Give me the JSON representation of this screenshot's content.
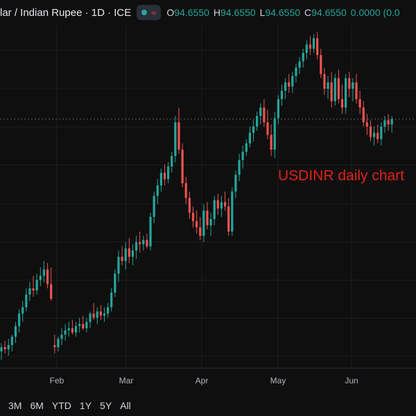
{
  "header": {
    "symbol": "lar / Indian Rupee · 1D · ICE",
    "open_label": "O",
    "open_value": "94.6550",
    "high_label": "H",
    "high_value": "94.6550",
    "low_label": "L",
    "low_value": "94.6550",
    "close_label": "C",
    "close_value": "94.6550",
    "change": "0.0000 (0.0"
  },
  "annotation": "USDINR daily chart",
  "range_buttons": [
    "3M",
    "6M",
    "YTD",
    "1Y",
    "5Y",
    "All"
  ],
  "colors": {
    "up": "#26a69a",
    "down": "#ef5350",
    "background": "#0f0f0f",
    "annotation": "#e0221b"
  },
  "chart_data": {
    "type": "candlestick",
    "x_ticks": [
      "Feb",
      "Mar",
      "Apr",
      "May",
      "Jun"
    ],
    "grid": true,
    "last_price_line": 94.655,
    "y_visible_range": [
      83.0,
      99.0
    ],
    "series": [
      {
        "date": "Jan-13",
        "o": 83.6,
        "h": 84.0,
        "l": 83.2,
        "c": 83.8
      },
      {
        "date": "Jan-14",
        "o": 83.8,
        "h": 84.1,
        "l": 83.5,
        "c": 83.7
      },
      {
        "date": "Jan-15",
        "o": 83.7,
        "h": 84.2,
        "l": 83.4,
        "c": 83.9
      },
      {
        "date": "Jan-16",
        "o": 83.9,
        "h": 84.4,
        "l": 83.6,
        "c": 84.3
      },
      {
        "date": "Jan-17",
        "o": 84.3,
        "h": 85.0,
        "l": 84.0,
        "c": 84.8
      },
      {
        "date": "Jan-20",
        "o": 84.8,
        "h": 85.6,
        "l": 84.5,
        "c": 85.4
      },
      {
        "date": "Jan-21",
        "o": 85.4,
        "h": 86.0,
        "l": 85.0,
        "c": 85.7
      },
      {
        "date": "Jan-22",
        "o": 85.7,
        "h": 86.6,
        "l": 85.5,
        "c": 86.3
      },
      {
        "date": "Jan-23",
        "o": 86.3,
        "h": 86.9,
        "l": 86.0,
        "c": 86.6
      },
      {
        "date": "Jan-24",
        "o": 86.6,
        "h": 87.2,
        "l": 86.2,
        "c": 86.5
      },
      {
        "date": "Jan-27",
        "o": 86.5,
        "h": 87.3,
        "l": 86.3,
        "c": 87.0
      },
      {
        "date": "Jan-28",
        "o": 87.0,
        "h": 87.6,
        "l": 86.7,
        "c": 87.2
      },
      {
        "date": "Jan-29",
        "o": 87.2,
        "h": 87.9,
        "l": 86.9,
        "c": 87.5
      },
      {
        "date": "Jan-30",
        "o": 87.5,
        "h": 87.8,
        "l": 86.6,
        "c": 86.8
      },
      {
        "date": "Jan-31",
        "o": 86.8,
        "h": 87.6,
        "l": 86.0,
        "c": 86.1
      },
      {
        "date": "Feb-03",
        "o": 83.9,
        "h": 84.4,
        "l": 83.5,
        "c": 83.8
      },
      {
        "date": "Feb-04",
        "o": 83.8,
        "h": 84.3,
        "l": 83.6,
        "c": 84.2
      },
      {
        "date": "Feb-05",
        "o": 84.2,
        "h": 84.7,
        "l": 83.9,
        "c": 84.4
      },
      {
        "date": "Feb-06",
        "o": 84.4,
        "h": 84.9,
        "l": 84.1,
        "c": 84.6
      },
      {
        "date": "Feb-07",
        "o": 84.6,
        "h": 85.0,
        "l": 84.3,
        "c": 84.7
      },
      {
        "date": "Feb-10",
        "o": 84.7,
        "h": 85.1,
        "l": 84.4,
        "c": 84.5
      },
      {
        "date": "Feb-11",
        "o": 84.5,
        "h": 85.0,
        "l": 84.3,
        "c": 84.8
      },
      {
        "date": "Feb-12",
        "o": 84.8,
        "h": 85.2,
        "l": 84.5,
        "c": 84.9
      },
      {
        "date": "Feb-13",
        "o": 84.9,
        "h": 85.3,
        "l": 84.6,
        "c": 84.7
      },
      {
        "date": "Feb-14",
        "o": 84.7,
        "h": 85.2,
        "l": 84.5,
        "c": 85.0
      },
      {
        "date": "Feb-17",
        "o": 85.0,
        "h": 85.5,
        "l": 84.7,
        "c": 85.4
      },
      {
        "date": "Feb-18",
        "o": 85.4,
        "h": 85.9,
        "l": 85.1,
        "c": 85.2
      },
      {
        "date": "Feb-19",
        "o": 85.2,
        "h": 85.7,
        "l": 84.9,
        "c": 85.5
      },
      {
        "date": "Feb-20",
        "o": 85.5,
        "h": 85.8,
        "l": 85.1,
        "c": 85.3
      },
      {
        "date": "Feb-21",
        "o": 85.3,
        "h": 85.7,
        "l": 85.0,
        "c": 85.4
      },
      {
        "date": "Feb-24",
        "o": 85.4,
        "h": 85.9,
        "l": 85.2,
        "c": 85.7
      },
      {
        "date": "Feb-25",
        "o": 85.7,
        "h": 86.6,
        "l": 85.5,
        "c": 86.4
      },
      {
        "date": "Feb-26",
        "o": 86.4,
        "h": 87.5,
        "l": 86.2,
        "c": 87.3
      },
      {
        "date": "Feb-27",
        "o": 87.3,
        "h": 88.4,
        "l": 86.9,
        "c": 88.1
      },
      {
        "date": "Feb-28",
        "o": 88.1,
        "h": 88.6,
        "l": 87.7,
        "c": 87.9
      },
      {
        "date": "Mar-03",
        "o": 87.9,
        "h": 88.8,
        "l": 87.5,
        "c": 88.5
      },
      {
        "date": "Mar-04",
        "o": 88.5,
        "h": 89.0,
        "l": 87.8,
        "c": 88.1
      },
      {
        "date": "Mar-05",
        "o": 88.1,
        "h": 88.7,
        "l": 87.7,
        "c": 88.4
      },
      {
        "date": "Mar-06",
        "o": 88.4,
        "h": 89.1,
        "l": 88.0,
        "c": 88.8
      },
      {
        "date": "Mar-07",
        "o": 88.8,
        "h": 89.3,
        "l": 88.3,
        "c": 88.7
      },
      {
        "date": "Mar-10",
        "o": 88.7,
        "h": 89.1,
        "l": 88.4,
        "c": 88.9
      },
      {
        "date": "Mar-11",
        "o": 88.9,
        "h": 89.2,
        "l": 88.5,
        "c": 88.6
      },
      {
        "date": "Mar-12",
        "o": 88.6,
        "h": 90.2,
        "l": 88.4,
        "c": 90.0
      },
      {
        "date": "Mar-13",
        "o": 90.0,
        "h": 91.2,
        "l": 89.7,
        "c": 91.0
      },
      {
        "date": "Mar-16",
        "o": 91.0,
        "h": 91.8,
        "l": 90.6,
        "c": 91.5
      },
      {
        "date": "Mar-17",
        "o": 91.5,
        "h": 92.3,
        "l": 91.2,
        "c": 92.1
      },
      {
        "date": "Mar-18",
        "o": 92.1,
        "h": 92.5,
        "l": 91.5,
        "c": 91.8
      },
      {
        "date": "Mar-19",
        "o": 91.8,
        "h": 92.6,
        "l": 91.6,
        "c": 92.4
      },
      {
        "date": "Mar-20",
        "o": 92.4,
        "h": 93.1,
        "l": 92.1,
        "c": 92.9
      },
      {
        "date": "Mar-23",
        "o": 92.9,
        "h": 94.8,
        "l": 92.6,
        "c": 94.5
      },
      {
        "date": "Mar-24",
        "o": 94.5,
        "h": 95.2,
        "l": 93.0,
        "c": 93.2
      },
      {
        "date": "Mar-25",
        "o": 93.2,
        "h": 93.5,
        "l": 91.4,
        "c": 91.6
      },
      {
        "date": "Mar-26",
        "o": 91.6,
        "h": 91.9,
        "l": 90.6,
        "c": 90.9
      },
      {
        "date": "Mar-27",
        "o": 90.9,
        "h": 91.2,
        "l": 89.9,
        "c": 90.2
      },
      {
        "date": "Mar-30",
        "o": 90.2,
        "h": 90.5,
        "l": 89.5,
        "c": 89.8
      },
      {
        "date": "Mar-31",
        "o": 89.8,
        "h": 90.3,
        "l": 89.2,
        "c": 89.5
      },
      {
        "date": "Apr-01",
        "o": 89.5,
        "h": 90.0,
        "l": 88.9,
        "c": 89.1
      },
      {
        "date": "Apr-02",
        "o": 89.1,
        "h": 90.6,
        "l": 88.8,
        "c": 90.3
      },
      {
        "date": "Apr-03",
        "o": 90.3,
        "h": 90.7,
        "l": 89.4,
        "c": 89.6
      },
      {
        "date": "Apr-06",
        "o": 89.6,
        "h": 90.2,
        "l": 89.1,
        "c": 89.9
      },
      {
        "date": "Apr-07",
        "o": 89.9,
        "h": 91.0,
        "l": 89.6,
        "c": 90.8
      },
      {
        "date": "Apr-08",
        "o": 90.8,
        "h": 91.1,
        "l": 90.1,
        "c": 90.4
      },
      {
        "date": "Apr-09",
        "o": 90.4,
        "h": 91.0,
        "l": 90.0,
        "c": 90.7
      },
      {
        "date": "Apr-10",
        "o": 90.7,
        "h": 91.2,
        "l": 90.3,
        "c": 90.5
      },
      {
        "date": "Apr-13",
        "o": 90.5,
        "h": 90.9,
        "l": 89.1,
        "c": 89.3
      },
      {
        "date": "Apr-14",
        "o": 89.3,
        "h": 91.4,
        "l": 89.1,
        "c": 91.2
      },
      {
        "date": "Apr-15",
        "o": 91.2,
        "h": 92.2,
        "l": 90.9,
        "c": 92.0
      },
      {
        "date": "Apr-16",
        "o": 92.0,
        "h": 93.0,
        "l": 91.7,
        "c": 92.7
      },
      {
        "date": "Apr-17",
        "o": 92.7,
        "h": 93.4,
        "l": 92.3,
        "c": 93.1
      },
      {
        "date": "Apr-20",
        "o": 93.1,
        "h": 93.7,
        "l": 92.9,
        "c": 93.5
      },
      {
        "date": "Apr-21",
        "o": 93.5,
        "h": 94.3,
        "l": 93.3,
        "c": 94.0
      },
      {
        "date": "Apr-22",
        "o": 94.0,
        "h": 94.6,
        "l": 93.6,
        "c": 94.3
      },
      {
        "date": "Apr-23",
        "o": 94.3,
        "h": 95.0,
        "l": 94.1,
        "c": 94.8
      },
      {
        "date": "Apr-24",
        "o": 94.8,
        "h": 95.4,
        "l": 94.4,
        "c": 95.2
      },
      {
        "date": "Apr-27",
        "o": 95.2,
        "h": 95.6,
        "l": 94.3,
        "c": 94.5
      },
      {
        "date": "Apr-28",
        "o": 94.5,
        "h": 95.1,
        "l": 93.7,
        "c": 93.9
      },
      {
        "date": "Apr-29",
        "o": 93.9,
        "h": 94.4,
        "l": 92.9,
        "c": 93.2
      },
      {
        "date": "Apr-30",
        "o": 93.2,
        "h": 95.0,
        "l": 92.8,
        "c": 94.7
      },
      {
        "date": "May-01",
        "o": 94.7,
        "h": 95.8,
        "l": 94.4,
        "c": 95.6
      },
      {
        "date": "May-04",
        "o": 95.6,
        "h": 96.3,
        "l": 95.3,
        "c": 96.0
      },
      {
        "date": "May-05",
        "o": 96.0,
        "h": 96.6,
        "l": 95.6,
        "c": 96.4
      },
      {
        "date": "May-06",
        "o": 96.4,
        "h": 96.8,
        "l": 95.9,
        "c": 96.2
      },
      {
        "date": "May-07",
        "o": 96.2,
        "h": 96.9,
        "l": 95.9,
        "c": 96.7
      },
      {
        "date": "May-08",
        "o": 96.7,
        "h": 97.3,
        "l": 96.4,
        "c": 97.1
      },
      {
        "date": "May-11",
        "o": 97.1,
        "h": 97.6,
        "l": 96.8,
        "c": 97.4
      },
      {
        "date": "May-12",
        "o": 97.4,
        "h": 98.0,
        "l": 97.1,
        "c": 97.8
      },
      {
        "date": "May-13",
        "o": 97.8,
        "h": 98.4,
        "l": 97.5,
        "c": 98.2
      },
      {
        "date": "May-14",
        "o": 98.2,
        "h": 98.6,
        "l": 97.7,
        "c": 98.0
      },
      {
        "date": "May-15",
        "o": 98.0,
        "h": 98.7,
        "l": 97.8,
        "c": 98.5
      },
      {
        "date": "May-18",
        "o": 98.5,
        "h": 98.8,
        "l": 97.5,
        "c": 97.7
      },
      {
        "date": "May-19",
        "o": 97.7,
        "h": 98.0,
        "l": 96.6,
        "c": 96.8
      },
      {
        "date": "May-20",
        "o": 96.8,
        "h": 97.1,
        "l": 95.8,
        "c": 96.1
      },
      {
        "date": "May-21",
        "o": 96.1,
        "h": 96.7,
        "l": 95.6,
        "c": 96.4
      },
      {
        "date": "May-22",
        "o": 96.4,
        "h": 96.9,
        "l": 95.2,
        "c": 95.5
      },
      {
        "date": "May-25",
        "o": 95.5,
        "h": 96.8,
        "l": 95.3,
        "c": 96.6
      },
      {
        "date": "May-26",
        "o": 96.6,
        "h": 97.0,
        "l": 95.4,
        "c": 95.6
      },
      {
        "date": "May-27",
        "o": 95.6,
        "h": 96.3,
        "l": 94.9,
        "c": 95.2
      },
      {
        "date": "May-28",
        "o": 95.2,
        "h": 96.8,
        "l": 94.9,
        "c": 96.6
      },
      {
        "date": "May-29",
        "o": 96.6,
        "h": 96.9,
        "l": 95.7,
        "c": 96.1
      },
      {
        "date": "Jun-01",
        "o": 96.1,
        "h": 96.6,
        "l": 95.5,
        "c": 96.4
      },
      {
        "date": "Jun-02",
        "o": 96.4,
        "h": 96.8,
        "l": 95.4,
        "c": 95.6
      },
      {
        "date": "Jun-03",
        "o": 95.6,
        "h": 96.0,
        "l": 94.9,
        "c": 95.2
      },
      {
        "date": "Jun-04",
        "o": 95.2,
        "h": 95.5,
        "l": 94.3,
        "c": 94.5
      },
      {
        "date": "Jun-05",
        "o": 94.5,
        "h": 94.9,
        "l": 93.9,
        "c": 94.3
      },
      {
        "date": "Jun-08",
        "o": 94.3,
        "h": 94.6,
        "l": 93.6,
        "c": 93.8
      },
      {
        "date": "Jun-09",
        "o": 93.8,
        "h": 94.3,
        "l": 93.4,
        "c": 94.0
      },
      {
        "date": "Jun-10",
        "o": 94.0,
        "h": 94.4,
        "l": 93.5,
        "c": 93.7
      },
      {
        "date": "Jun-11",
        "o": 93.7,
        "h": 94.5,
        "l": 93.4,
        "c": 94.3
      },
      {
        "date": "Jun-12",
        "o": 94.3,
        "h": 94.8,
        "l": 94.0,
        "c": 94.6
      },
      {
        "date": "Jun-15",
        "o": 94.6,
        "h": 94.9,
        "l": 94.1,
        "c": 94.4
      },
      {
        "date": "Jun-16",
        "o": 94.4,
        "h": 94.8,
        "l": 94.0,
        "c": 94.655
      }
    ]
  }
}
